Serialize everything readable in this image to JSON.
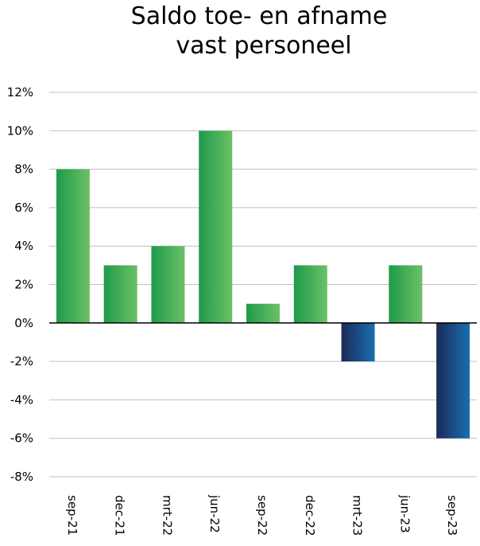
{
  "chart_data": {
    "type": "bar",
    "title": "Saldo toe- en afname vast personeel",
    "title_lines": [
      "Saldo toe- en afname",
      "vast personeel"
    ],
    "categories": [
      "sep-21",
      "dec-21",
      "mrt-22",
      "jun-22",
      "sep-22",
      "dec-22",
      "mrt-23",
      "jun-23",
      "sep-23"
    ],
    "values": [
      8,
      3,
      4,
      10,
      1,
      3,
      -2,
      3,
      -6
    ],
    "ylim": [
      -8,
      12
    ],
    "yticks": [
      12,
      10,
      8,
      6,
      4,
      2,
      0,
      -2,
      -4,
      -6,
      -8
    ],
    "ytick_labels": [
      "12%",
      "10%",
      "8%",
      "6%",
      "4%",
      "2%",
      "0%",
      "-2%",
      "-4%",
      "-6%",
      "-8%"
    ],
    "xlabel": "",
    "ylabel": "",
    "grid": true,
    "legend": "none",
    "colors": {
      "positive_dark": "#1e9a4a",
      "positive_light": "#6cc166",
      "negative_dark": "#1b2a57",
      "negative_light": "#1a6fb0",
      "gridline": "#bfbfbf",
      "zero_line": "#000000"
    }
  }
}
